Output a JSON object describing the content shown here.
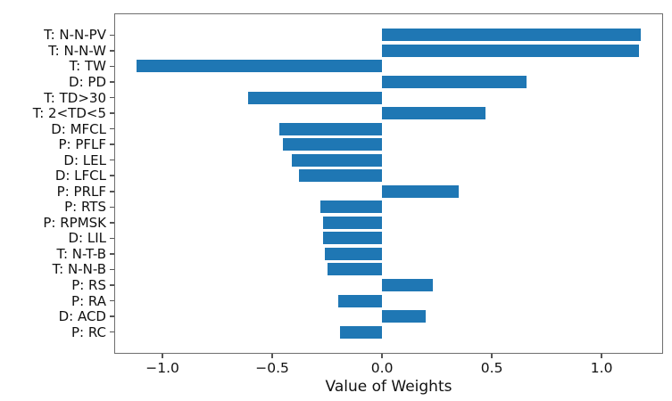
{
  "chart_data": {
    "type": "bar",
    "orientation": "horizontal",
    "title": "",
    "xlabel": "Value of Weights",
    "ylabel": "",
    "grid": false,
    "legend": null,
    "bar_color": "#1f77b4",
    "xlim": [
      -1.22,
      1.28
    ],
    "x_ticks": [
      {
        "value": -1.0,
        "label": "−1.0"
      },
      {
        "value": -0.5,
        "label": "−0.5"
      },
      {
        "value": 0.0,
        "label": "0.0"
      },
      {
        "value": 0.5,
        "label": "0.5"
      },
      {
        "value": 1.0,
        "label": "1.0"
      }
    ],
    "categories": [
      "T: N-N-PV",
      "T: N-N-W",
      "T: TW",
      "D: PD",
      "T: TD>30",
      "T: 2<TD<5",
      "D: MFCL",
      "P: PFLF",
      "D: LEL",
      "D: LFCL",
      "P: PRLF",
      "P: RTS",
      "P: RPMSK",
      "D: LIL",
      "T: N-T-B",
      "T: N-N-B",
      "P: RS",
      "P: RA",
      "D: ACD",
      "P: RC"
    ],
    "values": [
      1.18,
      1.17,
      -1.12,
      0.66,
      -0.61,
      0.47,
      -0.47,
      -0.45,
      -0.41,
      -0.38,
      0.35,
      -0.28,
      -0.27,
      -0.27,
      -0.26,
      -0.25,
      0.23,
      -0.2,
      0.2,
      -0.19
    ]
  }
}
